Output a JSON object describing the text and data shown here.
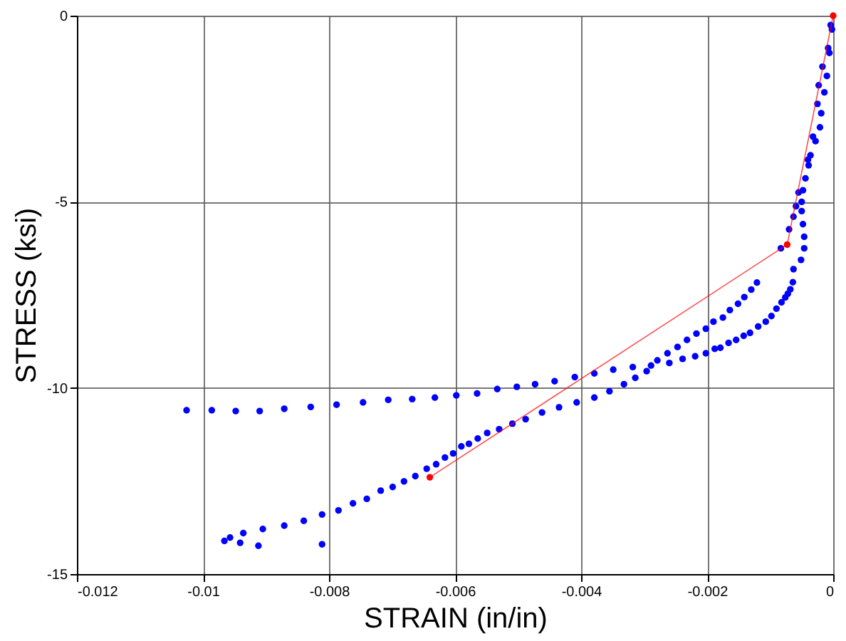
{
  "chart_data": {
    "type": "scatter",
    "xlabel": "STRAIN (in/in)",
    "ylabel": "STRESS (ksi)",
    "xlim": [
      -0.012,
      0
    ],
    "ylim": [
      -15,
      0
    ],
    "xticks": [
      -0.012,
      -0.01,
      -0.008,
      -0.006,
      -0.004,
      -0.002,
      0
    ],
    "yticks": [
      -15,
      -10,
      -5,
      0
    ],
    "grid": true,
    "series": [
      {
        "marker": "circle",
        "color": "#0000ff",
        "x": [
          -0.01026,
          -0.00986,
          -0.00948,
          -0.0091,
          -0.00871,
          -0.00829,
          -0.00788,
          -0.00746,
          -0.00706,
          -0.00668,
          -0.00632,
          -0.00598,
          -0.00565,
          -0.00533,
          -0.00502,
          -0.00473,
          -0.00442,
          -0.0041,
          -0.00379,
          -0.00349,
          -0.00318,
          -0.00289,
          -0.00279,
          -0.00263,
          -0.00247,
          -0.00232,
          -0.00217,
          -0.00202,
          -0.0019,
          -0.00175,
          -0.00164,
          -0.00151,
          -0.00141,
          -0.0013,
          -0.00121,
          -0.00083,
          -0.0007,
          -0.00063,
          -0.00059,
          -0.00055,
          -0.0004,
          -0.00032,
          -0.00025,
          -0.00023,
          -0.00017,
          -8e-05,
          -4e-05,
          -2e-05,
          -6e-05,
          -0.0001,
          -0.00014,
          -0.00019,
          -0.00021,
          -0.00028,
          -0.00036,
          -0.00039,
          -0.00044,
          -0.00048,
          -0.0005,
          -0.0005,
          -0.00048,
          -0.00046,
          -0.00046,
          -0.00051,
          -0.00063,
          -0.00064,
          -0.00068,
          -0.00072,
          -0.00076,
          -0.00082,
          -0.0009,
          -0.00098,
          -0.00107,
          -0.00119,
          -0.00132,
          -0.00142,
          -0.00154,
          -0.00166,
          -0.00179,
          -0.00188,
          -0.00202,
          -0.00219,
          -0.00239,
          -0.0026,
          -0.00296,
          -0.00314,
          -0.00332,
          -0.00355,
          -0.00379,
          -0.00407,
          -0.00435,
          -0.00462,
          -0.00488,
          -0.00509,
          -0.0053,
          -0.00549,
          -0.00564,
          -0.00578,
          -0.0059,
          -0.00603,
          -0.00616,
          -0.0063,
          -0.00645,
          -0.00663,
          -0.00681,
          -0.00699,
          -0.00718,
          -0.0074,
          -0.00762,
          -0.00785,
          -0.00811,
          -0.0084,
          -0.00871,
          -0.00905,
          -0.00936,
          -0.00957,
          -0.00966,
          -0.00941,
          -0.00912,
          -0.00811
        ],
        "values": [
          -10.6,
          -10.6,
          -10.62,
          -10.62,
          -10.56,
          -10.51,
          -10.45,
          -10.39,
          -10.32,
          -10.3,
          -10.26,
          -10.2,
          -10.15,
          -10.03,
          -9.97,
          -9.9,
          -9.82,
          -9.71,
          -9.61,
          -9.51,
          -9.44,
          -9.4,
          -9.26,
          -9.07,
          -8.9,
          -8.71,
          -8.54,
          -8.41,
          -8.22,
          -8.11,
          -7.91,
          -7.74,
          -7.56,
          -7.36,
          -7.17,
          -6.25,
          -5.74,
          -5.4,
          -5.12,
          -4.75,
          -3.87,
          -3.25,
          -2.37,
          -1.87,
          -1.37,
          -0.87,
          -0.25,
          -0.37,
          -1.0,
          -1.62,
          -2.06,
          -2.62,
          -3.0,
          -3.37,
          -3.75,
          -4.02,
          -4.37,
          -4.69,
          -5.0,
          -5.25,
          -5.6,
          -5.94,
          -6.25,
          -6.56,
          -6.81,
          -7.16,
          -7.35,
          -7.47,
          -7.57,
          -7.7,
          -7.87,
          -8.07,
          -8.22,
          -8.35,
          -8.52,
          -8.6,
          -8.71,
          -8.79,
          -8.92,
          -8.95,
          -9.07,
          -9.15,
          -9.22,
          -9.33,
          -9.55,
          -9.73,
          -9.9,
          -10.09,
          -10.26,
          -10.39,
          -10.52,
          -10.66,
          -10.84,
          -10.96,
          -11.11,
          -11.21,
          -11.36,
          -11.5,
          -11.57,
          -11.76,
          -11.87,
          -12.05,
          -12.17,
          -12.37,
          -12.51,
          -12.66,
          -12.76,
          -12.98,
          -13.1,
          -13.29,
          -13.4,
          -13.57,
          -13.7,
          -13.79,
          -13.9,
          -14.02,
          -14.11,
          -14.16,
          -14.24,
          -14.2
        ]
      },
      {
        "type": "line",
        "marker": "circle",
        "color": "#ff0000",
        "x": [
          0,
          -0.00073,
          -0.0064
        ],
        "values": [
          0,
          -6.15,
          -12.4
        ]
      }
    ]
  }
}
